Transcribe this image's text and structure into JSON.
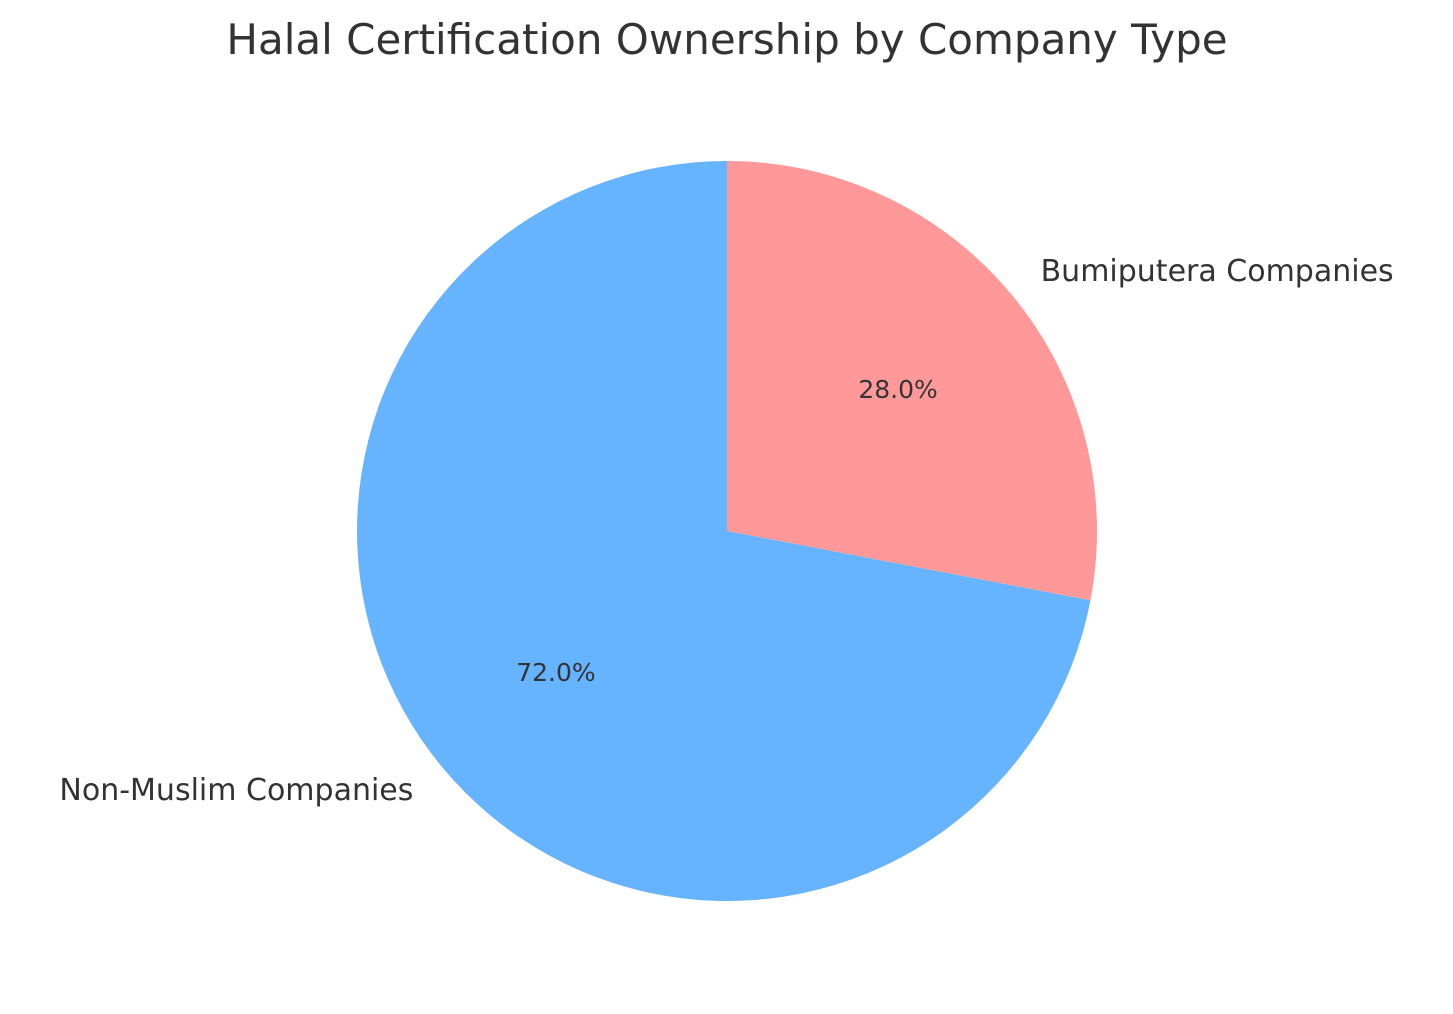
{
  "chart_data": {
    "type": "pie",
    "title": "Halal Certification Ownership by Company Type",
    "categories": [
      "Bumiputera Companies",
      "Non-Muslim Companies"
    ],
    "values": [
      28.0,
      72.0
    ],
    "value_labels": [
      "28.0%",
      "72.0%"
    ],
    "colors": [
      "#ff9999",
      "#66b3ff"
    ],
    "start_angle_deg": 90,
    "direction": "clockwise"
  }
}
